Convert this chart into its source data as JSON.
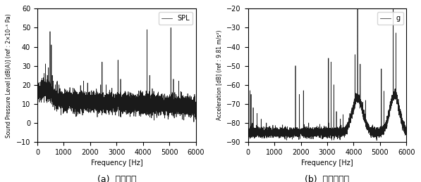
{
  "fig_width": 5.97,
  "fig_height": 2.59,
  "dpi": 100,
  "left_xlabel": "Frequency [Hz]",
  "left_ylabel": "Sound Pressure Level [dB(A)] (ref : 2×10⁻⁵ Pa)",
  "left_legend": "SPL",
  "left_xlim": [
    0,
    6000
  ],
  "left_ylim": [
    -10,
    60
  ],
  "left_yticks": [
    -10,
    0,
    10,
    20,
    30,
    40,
    50,
    60
  ],
  "left_xticks": [
    0,
    1000,
    2000,
    3000,
    4000,
    5000,
    6000
  ],
  "left_caption": "(a)  음압레벨",
  "right_xlabel": "Frequency [Hz]",
  "right_ylabel": "Acceleration [dB] (ref : 9.81 m/s²)",
  "right_legend": "g",
  "right_xlim": [
    0,
    6000
  ],
  "right_ylim": [
    -90,
    -20
  ],
  "right_yticks": [
    -90,
    -80,
    -70,
    -60,
    -50,
    -40,
    -30,
    -20
  ],
  "right_xticks": [
    0,
    1000,
    2000,
    3000,
    4000,
    5000,
    6000
  ],
  "right_caption": "(b)  진동가속도",
  "line_color": "#1a1a1a",
  "line_width": 0.5,
  "background_color": "#ffffff",
  "font_size_axis": 7,
  "font_size_label": 7,
  "font_size_legend": 7,
  "font_size_caption": 9
}
